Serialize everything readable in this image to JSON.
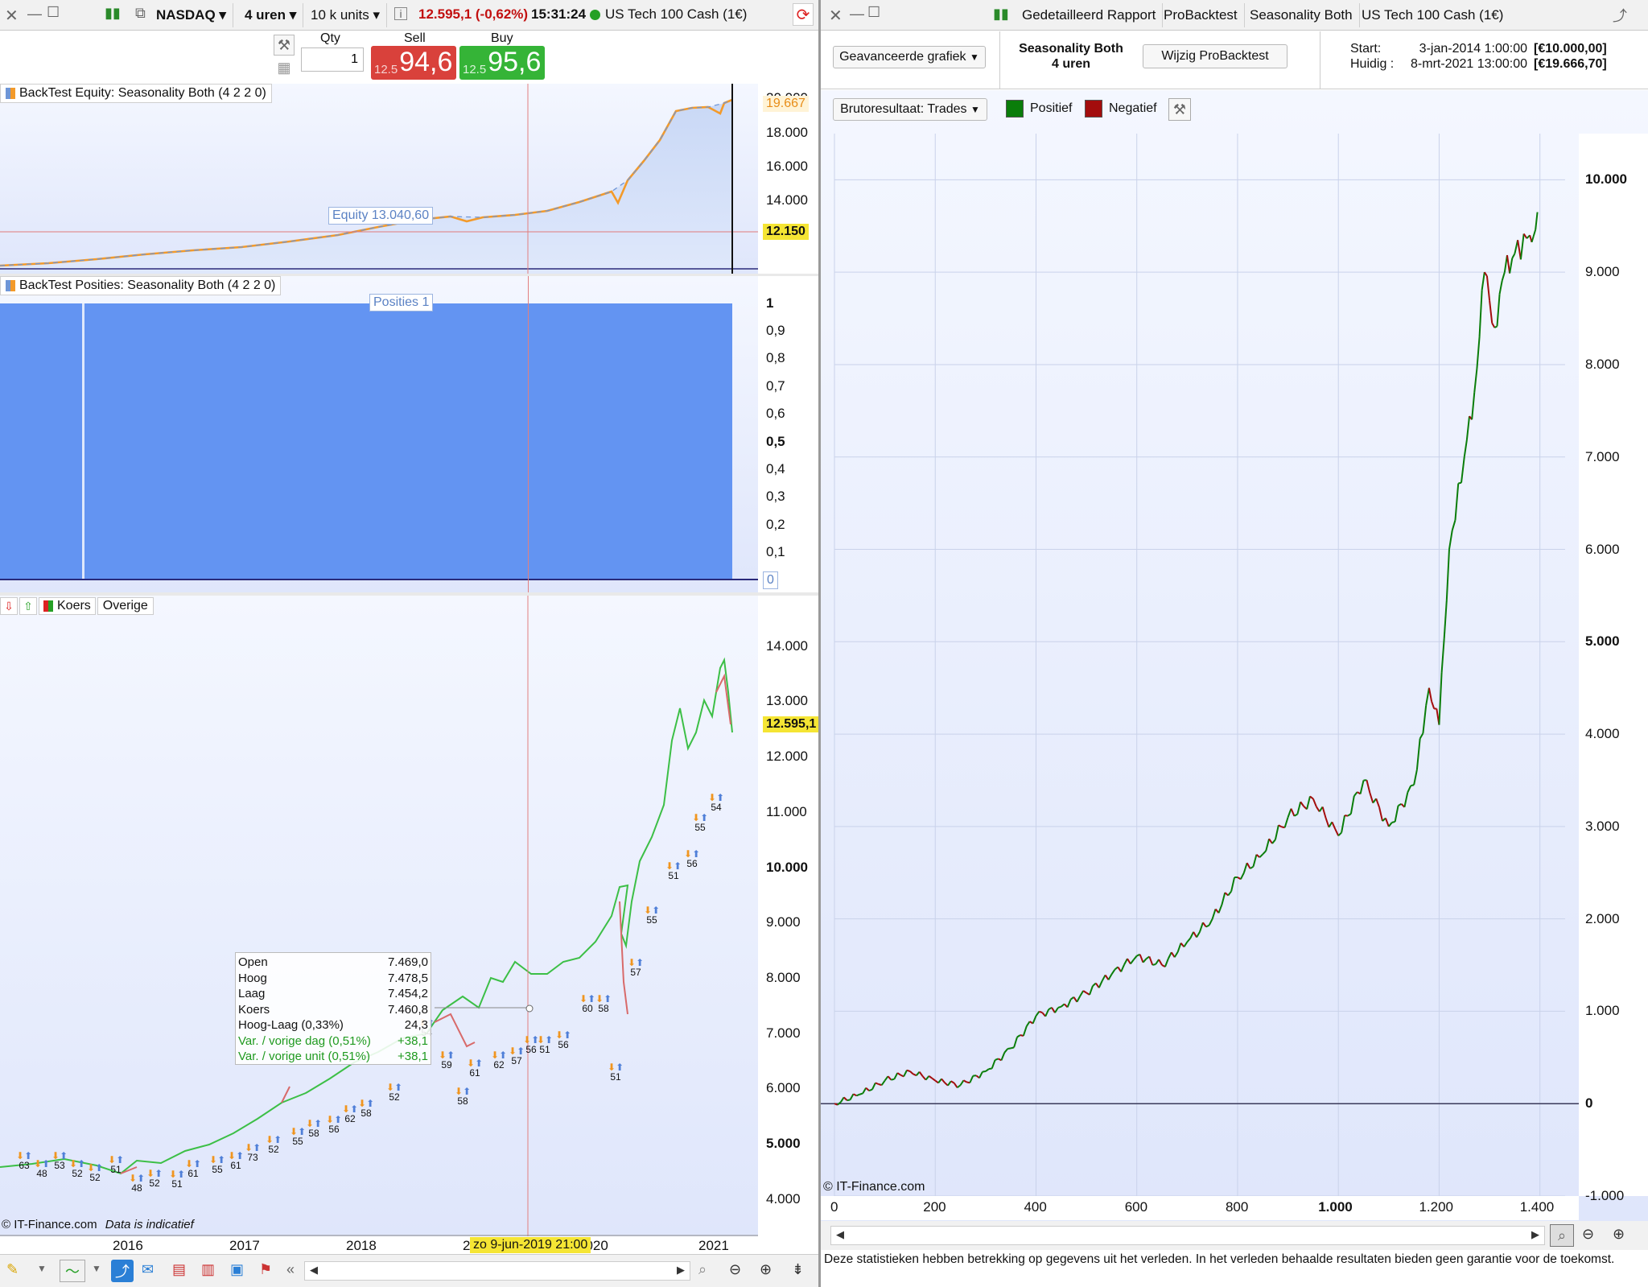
{
  "left_window": {
    "toolbar": {
      "instrument": "NASDAQ",
      "timeframe": "4 uren",
      "units": "10 k units",
      "price_change": "12.595,1 (-0,62%)",
      "time": "15:31:24",
      "instrument_name": "US Tech 100 Cash (1€)"
    },
    "order": {
      "qty_label": "Qty",
      "qty_value": "1",
      "sell_label": "Sell",
      "buy_label": "Buy",
      "sell_prefix": "12.5",
      "sell_price": "94,6",
      "buy_prefix": "12.5",
      "buy_price": "95,6"
    },
    "equity_panel": {
      "title": "BackTest Equity: Seasonality Both (4 2 2 0)",
      "equity_tag": "Equity  13.040,60",
      "last_value": "19.667",
      "cursor_value": "12.150",
      "top_label": "20.000",
      "y_labels": [
        "18.000",
        "16.000",
        "14.000"
      ]
    },
    "positions_panel": {
      "title": "BackTest Posities: Seasonality Both (4 2 2 0)",
      "pos_tag": "Posities  1",
      "y_labels": [
        "1",
        "0,9",
        "0,8",
        "0,7",
        "0,6",
        "0,5",
        "0,4",
        "0,3",
        "0,2",
        "0,1",
        "0"
      ]
    },
    "price_panel": {
      "tab_koers": "Koers",
      "tab_overige": "Overige",
      "last_price": "12.595,1",
      "y_labels": [
        "14.000",
        "13.000",
        "12.000",
        "11.000",
        "10.000",
        "9.000",
        "8.000",
        "7.000",
        "6.000",
        "5.000",
        "4.000"
      ],
      "x_labels": [
        "2016",
        "2017",
        "2018",
        "2019",
        "2020",
        "2021"
      ],
      "cursor_date": "zo 9-jun-2019 21:00",
      "footer_copyright": "© IT-Finance.com",
      "footer_note": "Data is indicatief",
      "hud": [
        {
          "k": "Open",
          "v": "7.469,0"
        },
        {
          "k": "Hoog",
          "v": "7.478,5"
        },
        {
          "k": "Laag",
          "v": "7.454,2"
        },
        {
          "k": "Koers",
          "v": "7.460,8"
        },
        {
          "k": "Hoog-Laag (0,33%)",
          "v": "24,3"
        },
        {
          "k": "Var. / vorige dag (0,51%)",
          "v": "+38,1"
        },
        {
          "k": "Var. / vorige unit (0,51%)",
          "v": "+38,1"
        }
      ],
      "trade_labels": [
        "63",
        "48",
        "53",
        "52",
        "52",
        "51",
        "48",
        "52",
        "51",
        "61",
        "55",
        "61",
        "73",
        "52",
        "55",
        "58",
        "56",
        "62",
        "58",
        "52",
        "54",
        "59",
        "58",
        "61",
        "62",
        "57",
        "56",
        "51",
        "56",
        "60",
        "58",
        "51",
        "57",
        "55",
        "51",
        "56",
        "55",
        "54"
      ]
    }
  },
  "right_window": {
    "tabs": [
      "Gedetailleerd Rapport",
      "ProBacktest",
      "Seasonality Both",
      "US Tech 100 Cash (1€)"
    ],
    "chart_type_select": "Geavanceerde grafiek",
    "strategy_name": "Seasonality Both",
    "strategy_tf": "4 uren",
    "modify_button": "Wijzig ProBacktest",
    "start_label": "Start:",
    "start_value": "3-jan-2014 1:00:00",
    "start_amount": "[€10.000,00]",
    "now_label": "Huidig :",
    "now_value": "8-mrt-2021 13:00:00",
    "now_amount": "[€19.666,70]",
    "result_select": "Brutoresultaat: Trades",
    "legend_pos": "Positief",
    "legend_neg": "Negatief",
    "color_pos": "#0a7d0a",
    "color_neg": "#a30d0d",
    "copyright": "© IT-Finance.com",
    "disclaimer": "Deze statistieken hebben betrekking op gegevens uit het verleden. In het verleden behaalde resultaten bieden geen garantie voor de toekomst."
  },
  "chart_data": [
    {
      "type": "line",
      "title": "Brutoresultaat: Trades",
      "xlabel": "",
      "ylabel": "",
      "xlim": [
        0,
        1450
      ],
      "ylim": [
        -1000,
        10500
      ],
      "x_ticks": [
        "0",
        "200",
        "400",
        "600",
        "800",
        "1.000",
        "1.200",
        "1.400"
      ],
      "y_ticks": [
        "10.000",
        "9.000",
        "8.000",
        "7.000",
        "6.000",
        "5.000",
        "4.000",
        "3.000",
        "2.000",
        "1.000",
        "0",
        "-1.000"
      ],
      "x": [
        0,
        50,
        100,
        150,
        200,
        250,
        300,
        350,
        400,
        450,
        500,
        550,
        600,
        650,
        700,
        750,
        800,
        850,
        900,
        950,
        1000,
        1050,
        1100,
        1150,
        1180,
        1200,
        1220,
        1250,
        1270,
        1290,
        1310,
        1330,
        1350,
        1380,
        1395
      ],
      "values": [
        0,
        100,
        250,
        350,
        250,
        200,
        350,
        600,
        950,
        1050,
        1200,
        1400,
        1600,
        1500,
        1750,
        2000,
        2450,
        2700,
        3100,
        3300,
        2900,
        3500,
        3000,
        3450,
        4500,
        4100,
        6000,
        7000,
        7700,
        9000,
        8400,
        9000,
        9200,
        9400,
        9650
      ]
    },
    {
      "type": "line",
      "title": "BackTest Equity: Seasonality Both (4 2 2 0)",
      "x": [
        "2015",
        "2016",
        "2017",
        "2018",
        "2019",
        "2020",
        "2021"
      ],
      "values": [
        10000,
        10500,
        11000,
        11800,
        12900,
        14000,
        19667
      ]
    }
  ]
}
